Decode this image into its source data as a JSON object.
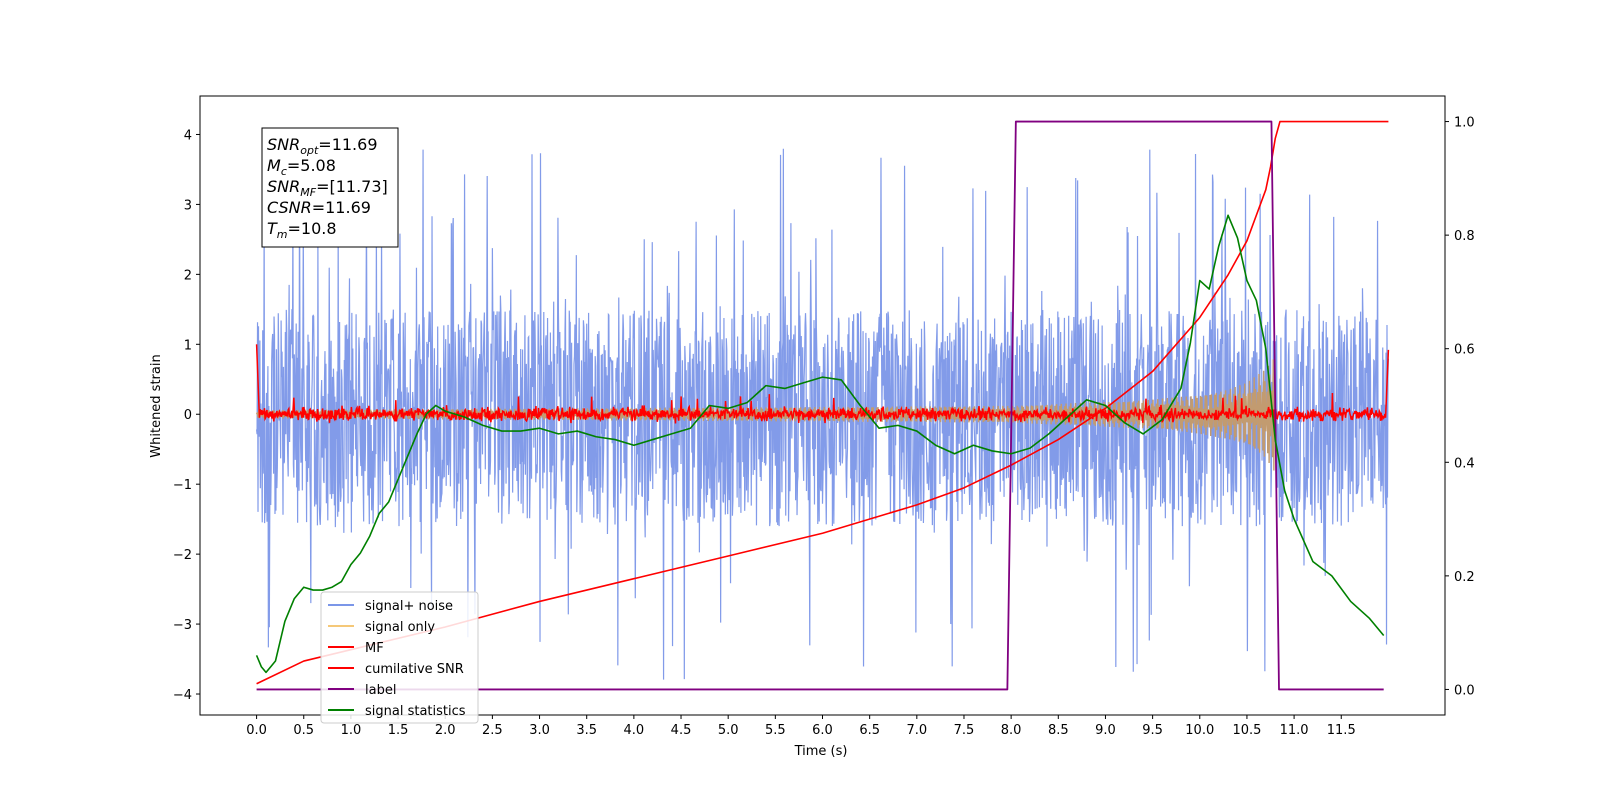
{
  "chart_data": {
    "type": "line",
    "xlabel": "Time (s)",
    "ylabel": "Whitened strain",
    "xlim": [
      -0.6,
      12.6
    ],
    "ylim_left": [
      -4.3,
      4.55
    ],
    "ylim_right": [
      -0.045,
      1.045
    ],
    "x_ticks": [
      0.0,
      0.5,
      1.0,
      1.5,
      2.0,
      2.5,
      3.0,
      3.5,
      4.0,
      4.5,
      5.0,
      5.5,
      6.0,
      6.5,
      7.0,
      7.5,
      8.0,
      8.5,
      9.0,
      9.5,
      10.0,
      10.5,
      11.0,
      11.5
    ],
    "x_tick_labels": [
      "0.0",
      "0.5",
      "1.0",
      "1.5",
      "2.0",
      "2.5",
      "3.0",
      "3.5",
      "4.0",
      "4.5",
      "5.0",
      "5.5",
      "6.0",
      "6.5",
      "7.0",
      "7.5",
      "8.0",
      "8.5",
      "9.0",
      "9.5",
      "10.0",
      "10.5",
      "11.0",
      "11.5"
    ],
    "y_left_ticks": [
      -4,
      -3,
      -2,
      -1,
      0,
      1,
      2,
      3,
      4
    ],
    "y_left_tick_labels": [
      "−4",
      "−3",
      "−2",
      "−1",
      "0",
      "1",
      "2",
      "3",
      "4"
    ],
    "y_right_ticks": [
      0.0,
      0.2,
      0.4,
      0.6,
      0.8,
      1.0
    ],
    "y_right_tick_labels": [
      "0.0",
      "0.2",
      "0.4",
      "0.6",
      "0.8",
      "1.0"
    ],
    "grid": false,
    "legend_placement": "lower-left",
    "annotation": {
      "lines": [
        {
          "base": "SNR",
          "sub": "opt",
          "value": "=11.69"
        },
        {
          "base": "M",
          "sub": "c",
          "value": "=5.08"
        },
        {
          "base": "SNR",
          "sub": "MF",
          "value": "=[11.73]"
        },
        {
          "base": "CSNR",
          "sub": "",
          "value": "=11.69"
        },
        {
          "base": "T",
          "sub": "m",
          "value": "=10.8"
        }
      ]
    },
    "series": [
      {
        "name": "signal+ noise",
        "color": "#7b96e8",
        "axis": "left",
        "kind": "noise",
        "x_range": [
          0.0,
          12.0
        ],
        "typical_range": [
          -1.6,
          1.5
        ],
        "peak_range": [
          -3.9,
          4.2
        ]
      },
      {
        "name": "signal only",
        "color": "#f5c878",
        "axis": "left",
        "kind": "chirp",
        "x_range": [
          0.0,
          10.8
        ],
        "envelope": {
          "x": [
            0.0,
            8.0,
            9.0,
            9.5,
            10.0,
            10.3,
            10.5,
            10.7,
            10.8
          ],
          "amplitude": [
            0.06,
            0.12,
            0.18,
            0.21,
            0.28,
            0.36,
            0.45,
            0.65,
            0.85
          ]
        }
      },
      {
        "name": "MF",
        "color": "#ff0000",
        "axis": "left",
        "kind": "matched-filter",
        "x_range": [
          0.0,
          12.0
        ],
        "start_value": 1.0,
        "end_value": 0.92,
        "baseline": 0.0,
        "noise_amplitude": 0.09
      },
      {
        "name": "cumilative SNR",
        "color": "#ff0000",
        "axis": "right",
        "x": [
          0.0,
          0.5,
          1.0,
          2.0,
          3.0,
          4.0,
          5.0,
          6.0,
          7.0,
          7.5,
          8.0,
          8.5,
          9.0,
          9.5,
          10.0,
          10.3,
          10.5,
          10.6,
          10.7,
          10.75,
          10.8,
          10.85,
          12.0
        ],
        "y": [
          0.01,
          0.05,
          0.07,
          0.11,
          0.155,
          0.195,
          0.235,
          0.275,
          0.325,
          0.355,
          0.395,
          0.44,
          0.495,
          0.56,
          0.655,
          0.73,
          0.79,
          0.835,
          0.88,
          0.92,
          0.97,
          1.0,
          1.0
        ]
      },
      {
        "name": "label",
        "color": "#800080",
        "axis": "right",
        "x": [
          0.0,
          7.96,
          8.05,
          10.76,
          10.84,
          11.95
        ],
        "y": [
          0.0,
          0.0,
          1.0,
          1.0,
          0.0,
          0.0
        ]
      },
      {
        "name": "signal statistics",
        "color": "#008000",
        "axis": "right",
        "x": [
          0.0,
          0.05,
          0.1,
          0.15,
          0.2,
          0.3,
          0.4,
          0.5,
          0.6,
          0.7,
          0.8,
          0.9,
          1.0,
          1.1,
          1.2,
          1.3,
          1.4,
          1.5,
          1.6,
          1.7,
          1.8,
          1.9,
          2.0,
          2.2,
          2.4,
          2.6,
          2.8,
          3.0,
          3.2,
          3.4,
          3.6,
          3.8,
          4.0,
          4.2,
          4.4,
          4.6,
          4.8,
          5.0,
          5.2,
          5.4,
          5.6,
          5.8,
          6.0,
          6.2,
          6.4,
          6.6,
          6.8,
          7.0,
          7.2,
          7.4,
          7.6,
          7.8,
          8.0,
          8.2,
          8.4,
          8.6,
          8.8,
          9.0,
          9.2,
          9.4,
          9.6,
          9.8,
          9.9,
          10.0,
          10.1,
          10.2,
          10.3,
          10.4,
          10.5,
          10.6,
          10.7,
          10.8,
          10.9,
          11.0,
          11.2,
          11.4,
          11.6,
          11.8,
          11.95
        ],
        "y": [
          0.06,
          0.04,
          0.03,
          0.04,
          0.05,
          0.12,
          0.16,
          0.18,
          0.175,
          0.175,
          0.18,
          0.19,
          0.22,
          0.24,
          0.27,
          0.31,
          0.33,
          0.37,
          0.41,
          0.45,
          0.485,
          0.5,
          0.49,
          0.48,
          0.465,
          0.455,
          0.455,
          0.46,
          0.45,
          0.455,
          0.445,
          0.44,
          0.43,
          0.44,
          0.45,
          0.46,
          0.5,
          0.495,
          0.505,
          0.535,
          0.53,
          0.54,
          0.55,
          0.545,
          0.5,
          0.46,
          0.465,
          0.455,
          0.43,
          0.415,
          0.43,
          0.42,
          0.415,
          0.425,
          0.45,
          0.48,
          0.51,
          0.5,
          0.47,
          0.45,
          0.475,
          0.53,
          0.61,
          0.72,
          0.705,
          0.78,
          0.835,
          0.795,
          0.72,
          0.685,
          0.6,
          0.44,
          0.35,
          0.3,
          0.225,
          0.2,
          0.155,
          0.125,
          0.095
        ]
      }
    ]
  }
}
